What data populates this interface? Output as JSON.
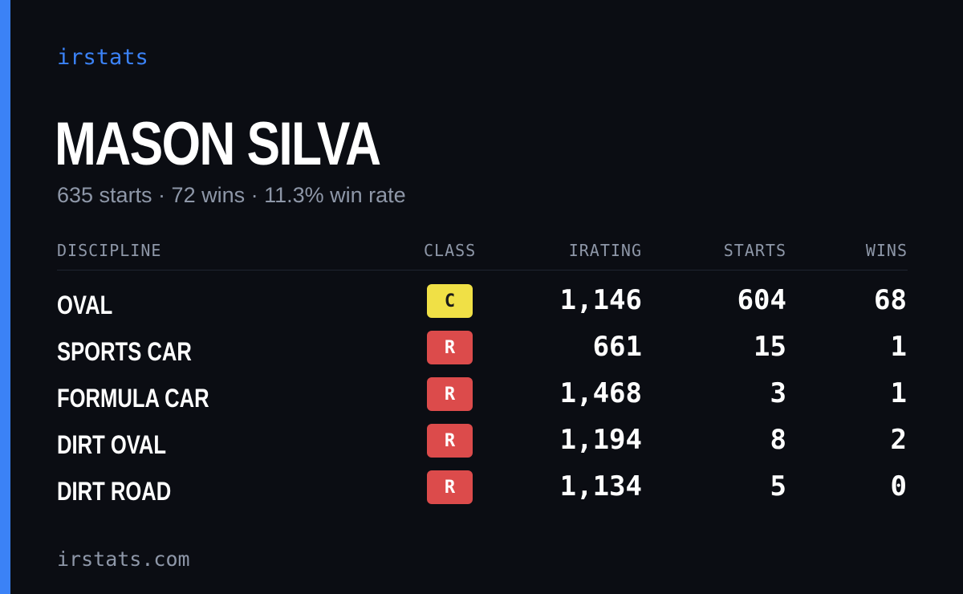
{
  "brand": {
    "label": "irstats"
  },
  "driver": {
    "name": "MASON SILVA",
    "summary": "635 starts · 72 wins · 11.3% win rate"
  },
  "table": {
    "headers": {
      "discipline": "DISCIPLINE",
      "class": "CLASS",
      "irating": "IRATING",
      "starts": "STARTS",
      "wins": "WINS"
    },
    "rows": [
      {
        "discipline": "OVAL",
        "class": "C",
        "class_bg": "#f0e046",
        "class_fg": "#1a1a1a",
        "irating": "1,146",
        "starts": "604",
        "wins": "68"
      },
      {
        "discipline": "SPORTS CAR",
        "class": "R",
        "class_bg": "#dc4b4b",
        "class_fg": "#ffffff",
        "irating": "661",
        "starts": "15",
        "wins": "1"
      },
      {
        "discipline": "FORMULA CAR",
        "class": "R",
        "class_bg": "#dc4b4b",
        "class_fg": "#ffffff",
        "irating": "1,468",
        "starts": "3",
        "wins": "1"
      },
      {
        "discipline": "DIRT OVAL",
        "class": "R",
        "class_bg": "#dc4b4b",
        "class_fg": "#ffffff",
        "irating": "1,194",
        "starts": "8",
        "wins": "2"
      },
      {
        "discipline": "DIRT ROAD",
        "class": "R",
        "class_bg": "#dc4b4b",
        "class_fg": "#ffffff",
        "irating": "1,134",
        "starts": "5",
        "wins": "0"
      }
    ]
  },
  "footer": {
    "url": "irstats.com"
  },
  "colors": {
    "background": "#0b0d13",
    "accent": "#3b82f6",
    "muted_text": "#8e97a8"
  }
}
